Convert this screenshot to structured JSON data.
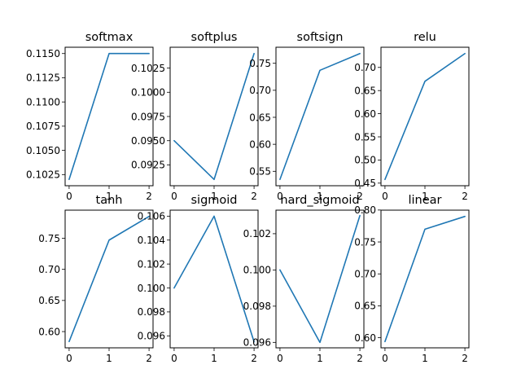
{
  "figure": {
    "background": "#ffffff",
    "line_color": "#1f77b4"
  },
  "chart_data": [
    {
      "type": "line",
      "title": "softmax",
      "x": [
        0,
        1,
        2
      ],
      "y": [
        0.102,
        0.115,
        0.115
      ],
      "xlim": [
        -0.1,
        2.1
      ],
      "ylim": [
        0.10135,
        0.11565
      ],
      "xticks": [
        0,
        1,
        2
      ],
      "yticks": [
        "0.1025",
        "0.1050",
        "0.1075",
        "0.1100",
        "0.1125",
        "0.1150"
      ],
      "grid": false
    },
    {
      "type": "line",
      "title": "softplus",
      "x": [
        0,
        1,
        2
      ],
      "y": [
        0.095,
        0.091,
        0.104
      ],
      "xlim": [
        -0.1,
        2.1
      ],
      "ylim": [
        0.09035,
        0.10465
      ],
      "xticks": [
        0,
        1,
        2
      ],
      "yticks": [
        "0.0925",
        "0.0950",
        "0.0975",
        "0.1000",
        "0.1025"
      ],
      "grid": false
    },
    {
      "type": "line",
      "title": "softsign",
      "x": [
        0,
        1,
        2
      ],
      "y": [
        0.535,
        0.737,
        0.768
      ],
      "xlim": [
        -0.1,
        2.1
      ],
      "ylim": [
        0.5233,
        0.7797
      ],
      "xticks": [
        0,
        1,
        2
      ],
      "yticks": [
        "0.55",
        "0.60",
        "0.65",
        "0.70",
        "0.75"
      ],
      "grid": false
    },
    {
      "type": "line",
      "title": "relu",
      "x": [
        0,
        1,
        2
      ],
      "y": [
        0.458,
        0.67,
        0.73
      ],
      "xlim": [
        -0.1,
        2.1
      ],
      "ylim": [
        0.4444,
        0.7436
      ],
      "xticks": [
        0,
        1,
        2
      ],
      "yticks": [
        "0.45",
        "0.50",
        "0.55",
        "0.60",
        "0.65",
        "0.70"
      ],
      "grid": false
    },
    {
      "type": "line",
      "title": "tanh",
      "x": [
        0,
        1,
        2
      ],
      "y": [
        0.584,
        0.747,
        0.785
      ],
      "xlim": [
        -0.1,
        2.1
      ],
      "ylim": [
        0.5739,
        0.7951
      ],
      "xticks": [
        0,
        1,
        2
      ],
      "yticks": [
        "0.60",
        "0.65",
        "0.70",
        "0.75"
      ],
      "grid": false
    },
    {
      "type": "line",
      "title": "sigmoid",
      "x": [
        0,
        1,
        2
      ],
      "y": [
        0.1,
        0.106,
        0.0955
      ],
      "xlim": [
        -0.1,
        2.1
      ],
      "ylim": [
        0.095,
        0.1065
      ],
      "xticks": [
        0,
        1,
        2
      ],
      "yticks": [
        "0.096",
        "0.098",
        "0.100",
        "0.102",
        "0.104",
        "0.106"
      ],
      "grid": false
    },
    {
      "type": "line",
      "title": "hard_sigmoid",
      "x": [
        0,
        1,
        2
      ],
      "y": [
        0.1,
        0.096,
        0.103
      ],
      "xlim": [
        -0.1,
        2.1
      ],
      "ylim": [
        0.0957,
        0.1033
      ],
      "xticks": [
        0,
        1,
        2
      ],
      "yticks": [
        "0.096",
        "0.098",
        "0.100",
        "0.102"
      ],
      "grid": false
    },
    {
      "type": "line",
      "title": "linear",
      "x": [
        0,
        1,
        2
      ],
      "y": [
        0.594,
        0.77,
        0.79
      ],
      "xlim": [
        -0.1,
        2.1
      ],
      "ylim": [
        0.5842,
        0.7998
      ],
      "xticks": [
        0,
        1,
        2
      ],
      "yticks": [
        "0.60",
        "0.65",
        "0.70",
        "0.75",
        "0.80"
      ],
      "grid": false
    }
  ]
}
